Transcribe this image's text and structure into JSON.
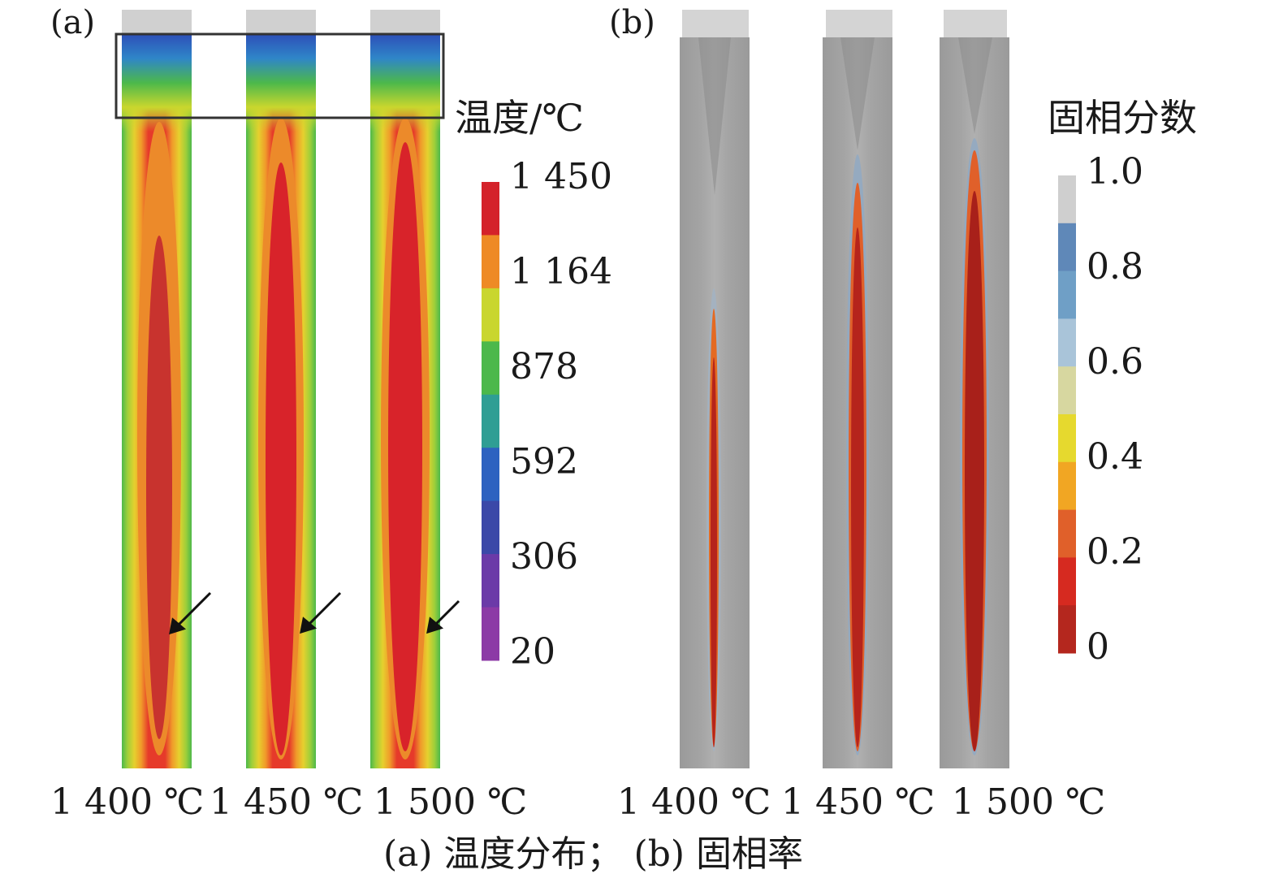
{
  "panel_a": {
    "label": "(a)",
    "legend_title": "温度/℃",
    "legend_ticks": [
      "1 450",
      "1 164",
      "878",
      "592",
      "306",
      "20"
    ],
    "legend_colors": [
      "#d4222a",
      "#ee8a25",
      "#c9d62e",
      "#4cb84b",
      "#2f9e94",
      "#2d62c0",
      "#3b48a8",
      "#6b3aa8",
      "#8c3aa6"
    ],
    "conditions": [
      "1 400 ℃",
      "1 450 ℃",
      "1 500 ℃"
    ]
  },
  "panel_b": {
    "label": "(b)",
    "legend_title": "固相分数",
    "legend_ticks": [
      "1.0",
      "0.8",
      "0.6",
      "0.4",
      "0.2",
      "0"
    ],
    "legend_colors": [
      "#b4271e",
      "#d62a20",
      "#e0602a",
      "#f1a623",
      "#e6d92e",
      "#d7d7a0",
      "#a9c4d9",
      "#6f9fc6",
      "#5f88b8",
      "#cfcfcf"
    ],
    "conditions": [
      "1 400 ℃",
      "1 450 ℃",
      "1 500 ℃"
    ]
  },
  "caption": "(a) 温度分布； (b) 固相率"
}
